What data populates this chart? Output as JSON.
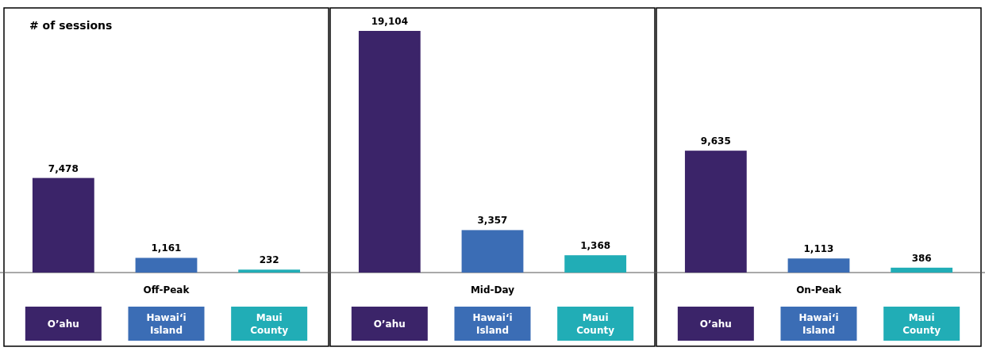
{
  "chart_data": [
    {
      "type": "bar",
      "annotations": [
        "# of sessions"
      ],
      "xlabel": "Off-Peak",
      "categories": [
        "O’ahu",
        "Hawai‘i Island",
        "Maui County"
      ],
      "values": [
        7478,
        1161,
        232
      ],
      "colors": [
        "#3b2469",
        "#3b6db5",
        "#21adb6"
      ],
      "value_labels": [
        "7,478",
        "1,161",
        "232"
      ]
    },
    {
      "type": "bar",
      "xlabel": "Mid-Day",
      "categories": [
        "O’ahu",
        "Hawai‘i Island",
        "Maui County"
      ],
      "values": [
        19104,
        3357,
        1368
      ],
      "colors": [
        "#3b2469",
        "#3b6db5",
        "#21adb6"
      ],
      "value_labels": [
        "19,104",
        "3,357",
        "1,368"
      ]
    },
    {
      "type": "bar",
      "xlabel": "On-Peak",
      "categories": [
        "O’ahu",
        "Hawai‘i Island",
        "Maui County"
      ],
      "values": [
        9635,
        1113,
        386
      ],
      "colors": [
        "#3b2469",
        "#3b6db5",
        "#21adb6"
      ],
      "value_labels": [
        "9,635",
        "1,113",
        "386"
      ]
    }
  ]
}
